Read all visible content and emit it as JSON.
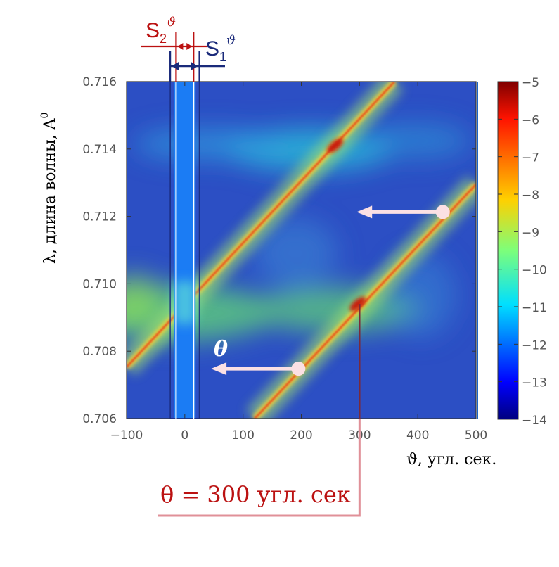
{
  "chart_data": {
    "type": "heatmap",
    "xlabel": "ϑ, угл. сек.",
    "ylabel": "λ, длина волны, A",
    "ylabel_sup": "0",
    "xlim": [
      -100,
      500
    ],
    "ylim": [
      0.706,
      0.716
    ],
    "x_ticks": [
      -100,
      0,
      100,
      200,
      300,
      400,
      500
    ],
    "x_tick_labels": [
      "−100",
      "0",
      "100",
      "200",
      "300",
      "400",
      "500"
    ],
    "y_ticks": [
      0.706,
      0.708,
      0.71,
      0.712,
      0.714,
      0.716
    ],
    "y_tick_labels": [
      "0.706",
      "0.708",
      "0.710",
      "0.712",
      "0.714",
      "0.716"
    ],
    "colorbar": {
      "min": -14,
      "max": -5,
      "ticks": [
        -5,
        -6,
        -7,
        -8,
        -9,
        -10,
        -11,
        -12,
        -13,
        -14
      ],
      "tick_labels": [
        "−5",
        "−6",
        "−7",
        "−8",
        "−9",
        "−10",
        "−11",
        "−12",
        "−13",
        "−14"
      ],
      "colormap": "jet"
    },
    "ridges": [
      {
        "x": [
          -100,
          360
        ],
        "y": [
          0.70753,
          0.716
        ]
      },
      {
        "x": [
          120,
          500
        ],
        "y": [
          0.706,
          0.71295
        ]
      }
    ],
    "bright_spots": [
      {
        "x": 0,
        "y": 0.7092
      },
      {
        "x": 258,
        "y": 0.7141
      },
      {
        "x": 297,
        "y": 0.7094
      }
    ],
    "slits": {
      "S1": {
        "label": "S",
        "sub": "1",
        "sup": "ϑ",
        "x_range": [
          -25,
          25
        ],
        "color": "#1a2a7a"
      },
      "S2": {
        "label": "S",
        "sub": "2",
        "sup": "ϑ",
        "x_range": [
          -15,
          15
        ],
        "color": "#bb1111"
      }
    },
    "arrows": [
      {
        "from": [
          443,
          0.71213
        ],
        "to": [
          295,
          0.71213
        ]
      },
      {
        "from": [
          195,
          0.70748
        ],
        "to": [
          45,
          0.70748
        ]
      }
    ],
    "theta_label": "θ",
    "theta_marker": {
      "x": 300,
      "y": 0.7094,
      "label": "θ = 300 угл. сек"
    }
  }
}
